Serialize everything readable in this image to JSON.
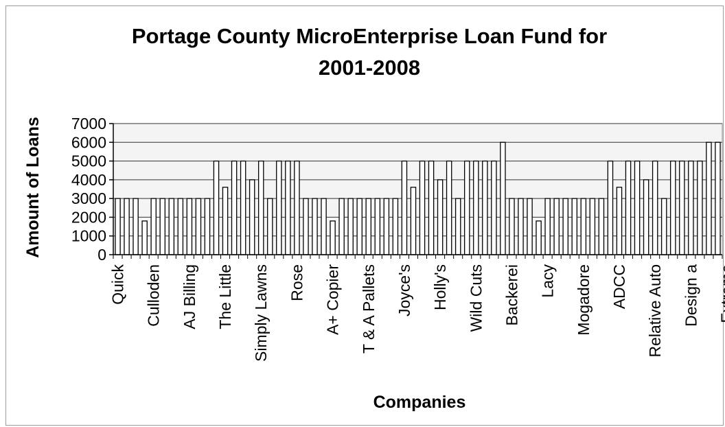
{
  "chart_data": {
    "type": "bar",
    "title_line1": "Portage County MicroEnterprise Loan Fund for",
    "title_line2": "2001-2008",
    "xlabel": "Companies",
    "ylabel": "Amount of Loans",
    "ylim": [
      0,
      7000
    ],
    "yticks": [
      0,
      1000,
      2000,
      3000,
      4000,
      5000,
      6000,
      7000
    ],
    "grid": true,
    "x_tick_labels": [
      "Quick",
      "Culloden",
      "AJ Billing",
      "The Little",
      "Simply Lawns",
      "Rose",
      "A+ Copier",
      "T & A Pallets",
      "Joyce's",
      "Holly's",
      "Wild Cuts",
      "Backerei",
      "Lacy",
      "Mogadore",
      "ADCC",
      "Relative Auto",
      "Design a",
      "Extreme"
    ],
    "label_every": 4,
    "values": [
      3000,
      3000,
      3000,
      1800,
      3000,
      3000,
      3000,
      3000,
      3000,
      3000,
      3000,
      5000,
      3600,
      5000,
      5000,
      4000,
      5000,
      3000,
      5000,
      5000,
      5000,
      3000,
      3000,
      3000,
      1800,
      3000,
      3000,
      3000,
      3000,
      3000,
      3000,
      3000,
      5000,
      3600,
      5000,
      5000,
      4000,
      5000,
      3000,
      5000,
      5000,
      5000,
      5000,
      6000,
      3000,
      3000,
      3000,
      1800,
      3000,
      3000,
      3000,
      3000,
      3000,
      3000,
      3000,
      5000,
      3600,
      5000,
      5000,
      4000,
      5000,
      3000,
      5000,
      5000,
      5000,
      5000,
      6000,
      6000
    ]
  }
}
